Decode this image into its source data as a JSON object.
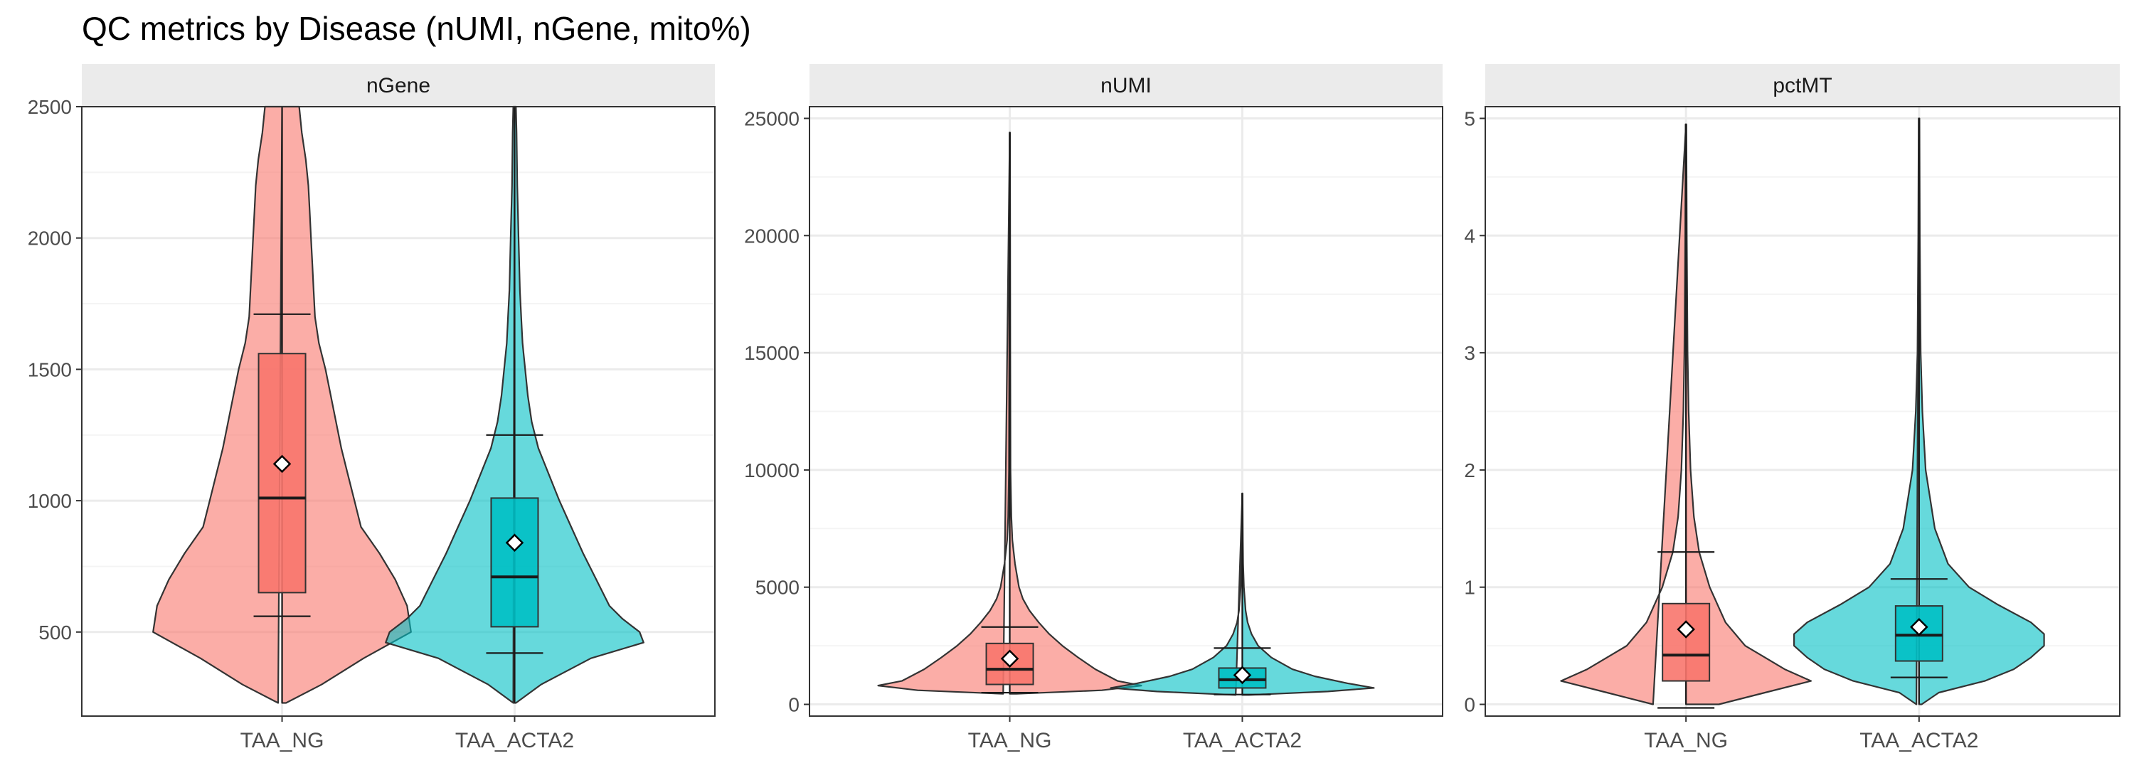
{
  "chart_data": {
    "type": "violin",
    "title": "QC metrics by Disease (nUMI, nGene, mito%)",
    "categories": [
      "TAA_NG",
      "TAA_ACTA2"
    ],
    "colors": {
      "TAA_NG": "#F8766D",
      "TAA_ACTA2": "#00BFC4"
    },
    "grid": true,
    "legend": "none",
    "panels": [
      {
        "name": "nGene",
        "ylim": [
          180,
          2500
        ],
        "yticks": [
          500,
          1000,
          1500,
          2000,
          2500
        ],
        "yticklabels": [
          "500",
          "1000",
          "1500",
          "2000",
          "2500"
        ],
        "groups": [
          {
            "category": "TAA_NG",
            "min": 230,
            "max": 2500,
            "q1": 650,
            "median": 1010,
            "q3": 1560,
            "mean": 1140,
            "whisker_low": 560,
            "whisker_high": 1710,
            "density": [
              [
                230,
                0.03
              ],
              [
                300,
                0.3
              ],
              [
                400,
                0.62
              ],
              [
                500,
                0.98
              ],
              [
                600,
                0.95
              ],
              [
                700,
                0.86
              ],
              [
                800,
                0.74
              ],
              [
                900,
                0.6
              ],
              [
                1000,
                0.55
              ],
              [
                1100,
                0.5
              ],
              [
                1200,
                0.45
              ],
              [
                1300,
                0.41
              ],
              [
                1400,
                0.37
              ],
              [
                1500,
                0.33
              ],
              [
                1600,
                0.28
              ],
              [
                1700,
                0.25
              ],
              [
                1800,
                0.24
              ],
              [
                1900,
                0.23
              ],
              [
                2000,
                0.22
              ],
              [
                2100,
                0.21
              ],
              [
                2200,
                0.2
              ],
              [
                2300,
                0.18
              ],
              [
                2400,
                0.15
              ],
              [
                2500,
                0.13
              ]
            ]
          },
          {
            "category": "TAA_ACTA2",
            "min": 230,
            "max": 2500,
            "q1": 520,
            "median": 710,
            "q3": 1010,
            "mean": 840,
            "whisker_low": 420,
            "whisker_high": 1250,
            "density": [
              [
                230,
                0.01
              ],
              [
                300,
                0.2
              ],
              [
                400,
                0.58
              ],
              [
                460,
                0.98
              ],
              [
                500,
                0.95
              ],
              [
                550,
                0.82
              ],
              [
                600,
                0.72
              ],
              [
                700,
                0.62
              ],
              [
                800,
                0.52
              ],
              [
                900,
                0.43
              ],
              [
                1000,
                0.34
              ],
              [
                1100,
                0.26
              ],
              [
                1200,
                0.18
              ],
              [
                1300,
                0.13
              ],
              [
                1400,
                0.1
              ],
              [
                1500,
                0.08
              ],
              [
                1600,
                0.06
              ],
              [
                1700,
                0.05
              ],
              [
                1800,
                0.04
              ],
              [
                2000,
                0.03
              ],
              [
                2200,
                0.02
              ],
              [
                2400,
                0.015
              ],
              [
                2500,
                0.01
              ]
            ]
          }
        ]
      },
      {
        "name": "nUMI",
        "ylim": [
          -500,
          25500
        ],
        "yticks": [
          0,
          5000,
          10000,
          15000,
          20000,
          25000
        ],
        "yticklabels": [
          "0",
          "5000",
          "10000",
          "15000",
          "20000",
          "25000"
        ],
        "groups": [
          {
            "category": "TAA_NG",
            "min": 450,
            "max": 24400,
            "q1": 850,
            "median": 1500,
            "q3": 2600,
            "mean": 1950,
            "whisker_low": 500,
            "whisker_high": 3300,
            "density": [
              [
                450,
                0.05
              ],
              [
                600,
                0.7
              ],
              [
                800,
                1.0
              ],
              [
                1000,
                0.82
              ],
              [
                1500,
                0.65
              ],
              [
                2000,
                0.52
              ],
              [
                2500,
                0.4
              ],
              [
                3000,
                0.3
              ],
              [
                3500,
                0.22
              ],
              [
                4000,
                0.15
              ],
              [
                4500,
                0.1
              ],
              [
                5000,
                0.07
              ],
              [
                6000,
                0.04
              ],
              [
                7000,
                0.02
              ],
              [
                8000,
                0.012
              ],
              [
                10000,
                0.006
              ],
              [
                15000,
                0.004
              ],
              [
                20000,
                0.003
              ],
              [
                24400,
                0.002
              ]
            ]
          },
          {
            "category": "TAA_ACTA2",
            "min": 400,
            "max": 9000,
            "q1": 700,
            "median": 1050,
            "q3": 1550,
            "mean": 1250,
            "whisker_low": 420,
            "whisker_high": 2400,
            "density": [
              [
                400,
                0.05
              ],
              [
                550,
                0.65
              ],
              [
                700,
                1.0
              ],
              [
                900,
                0.8
              ],
              [
                1200,
                0.55
              ],
              [
                1500,
                0.38
              ],
              [
                2000,
                0.22
              ],
              [
                2500,
                0.12
              ],
              [
                3000,
                0.07
              ],
              [
                3500,
                0.04
              ],
              [
                4000,
                0.025
              ],
              [
                5000,
                0.012
              ],
              [
                6000,
                0.006
              ],
              [
                7000,
                0.004
              ],
              [
                9000,
                0.002
              ]
            ]
          }
        ]
      },
      {
        "name": "pctMT",
        "ylim": [
          -0.1,
          5.1
        ],
        "yticks": [
          0,
          1,
          2,
          3,
          4,
          5
        ],
        "yticklabels": [
          "0",
          "1",
          "2",
          "3",
          "4",
          "5"
        ],
        "groups": [
          {
            "category": "TAA_NG",
            "min": 0,
            "max": 4.95,
            "q1": 0.2,
            "median": 0.42,
            "q3": 0.86,
            "mean": 0.64,
            "whisker_low": -0.03,
            "whisker_high": 1.3,
            "density": [
              [
                0,
                0.25
              ],
              [
                0.1,
                0.6
              ],
              [
                0.2,
                0.95
              ],
              [
                0.3,
                0.75
              ],
              [
                0.4,
                0.6
              ],
              [
                0.5,
                0.45
              ],
              [
                0.7,
                0.3
              ],
              [
                1.0,
                0.18
              ],
              [
                1.3,
                0.1
              ],
              [
                1.6,
                0.06
              ],
              [
                2.0,
                0.035
              ],
              [
                2.5,
                0.02
              ],
              [
                3.0,
                0.012
              ],
              [
                4.0,
                0.006
              ],
              [
                4.95,
                0.003
              ]
            ]
          },
          {
            "category": "TAA_ACTA2",
            "min": 0,
            "max": 5.0,
            "q1": 0.37,
            "median": 0.59,
            "q3": 0.84,
            "mean": 0.66,
            "whisker_low": 0.23,
            "whisker_high": 1.07,
            "density": [
              [
                0,
                0.02
              ],
              [
                0.1,
                0.15
              ],
              [
                0.2,
                0.5
              ],
              [
                0.3,
                0.72
              ],
              [
                0.4,
                0.85
              ],
              [
                0.5,
                0.95
              ],
              [
                0.6,
                0.95
              ],
              [
                0.7,
                0.85
              ],
              [
                0.85,
                0.6
              ],
              [
                1.0,
                0.38
              ],
              [
                1.2,
                0.22
              ],
              [
                1.5,
                0.12
              ],
              [
                2.0,
                0.05
              ],
              [
                2.5,
                0.025
              ],
              [
                3.0,
                0.012
              ],
              [
                4.0,
                0.006
              ],
              [
                5.0,
                0.003
              ]
            ]
          }
        ]
      }
    ]
  }
}
